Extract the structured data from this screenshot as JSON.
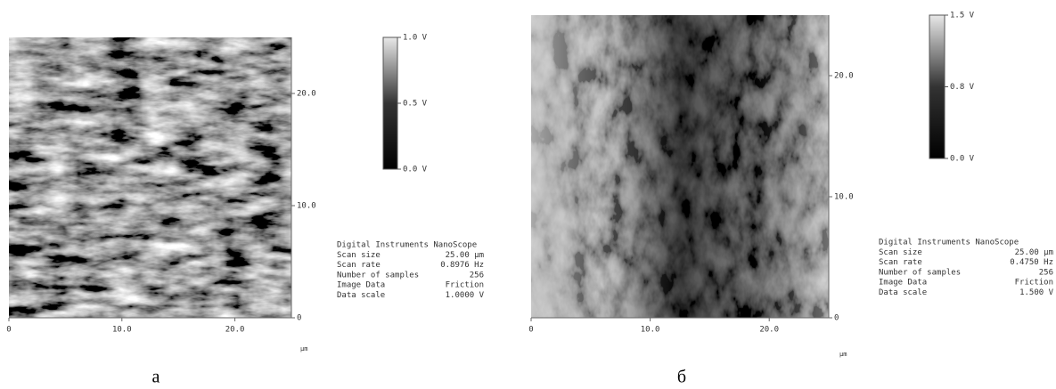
{
  "panels": [
    {
      "caption": "а",
      "x_ticks": [
        "0",
        "10.0",
        "20.0"
      ],
      "y_ticks": [
        "0",
        "10.0",
        "20.0"
      ],
      "unit": "µm",
      "colorbar_labels": [
        "1.0 V",
        "0.5 V",
        "0.0 V"
      ],
      "info": {
        "header": "Digital Instruments NanoScope",
        "rows": [
          [
            "Scan size",
            "25.00 µm"
          ],
          [
            "Scan rate",
            "0.8976 Hz"
          ],
          [
            "Number of samples",
            "256"
          ],
          [
            "Image Data",
            "Friction"
          ],
          [
            "Data scale",
            "1.0000 V"
          ]
        ]
      }
    },
    {
      "caption": "б",
      "x_ticks": [
        "0",
        "10.0",
        "20.0"
      ],
      "y_ticks": [
        "0",
        "10.0",
        "20.0"
      ],
      "unit": "µm",
      "colorbar_labels": [
        "1.5 V",
        "0.8 V",
        "0.0 V"
      ],
      "info": {
        "header": "Digital Instruments NanoScope",
        "rows": [
          [
            "Scan size",
            "25.00 µm"
          ],
          [
            "Scan rate",
            "0.4750 Hz"
          ],
          [
            "Number of samples",
            "256"
          ],
          [
            "Image Data",
            "Friction"
          ],
          [
            "Data scale",
            "1.500 V"
          ]
        ]
      }
    }
  ]
}
